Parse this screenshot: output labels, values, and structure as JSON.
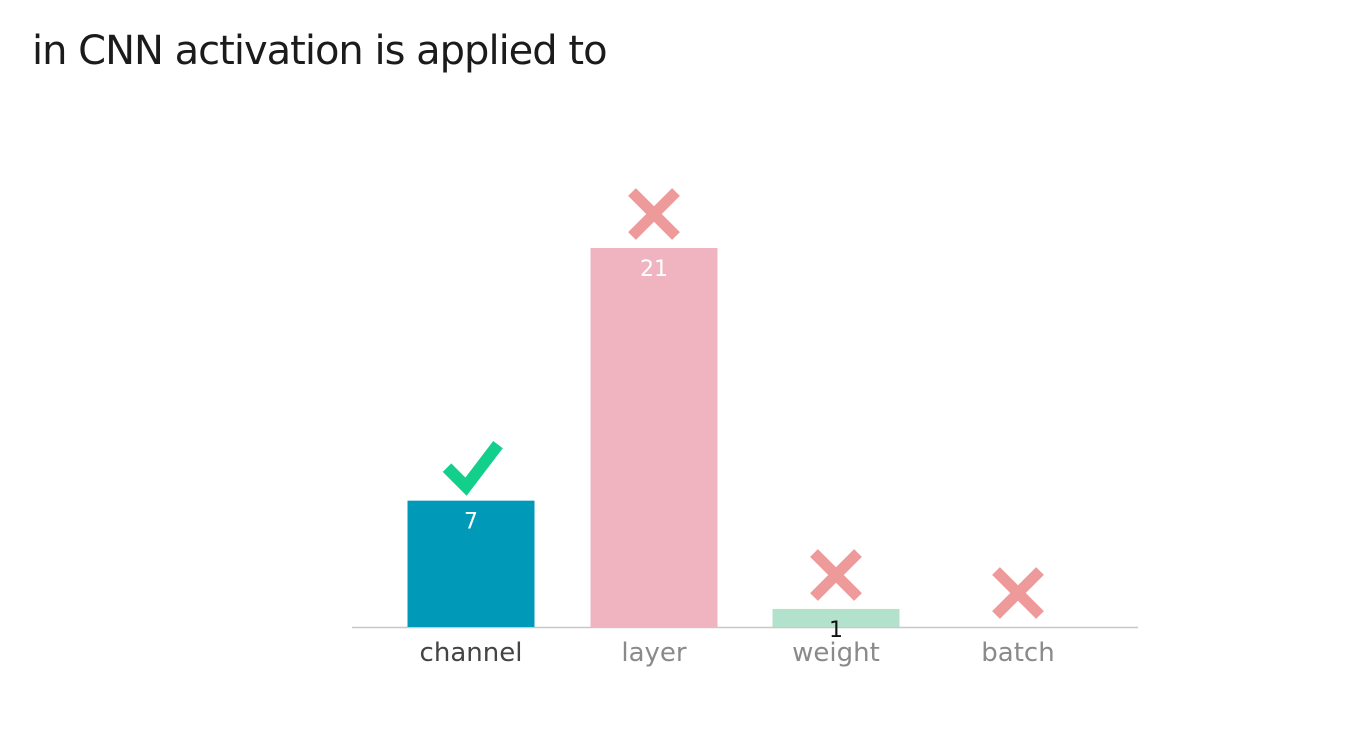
{
  "question": {
    "title": "in CNN activation is applied to"
  },
  "chart_data": {
    "type": "bar",
    "title": "in CNN activation is applied to",
    "xlabel": "",
    "ylabel": "",
    "ylim": [
      0,
      21
    ],
    "grid": false,
    "legend": "none",
    "categories": [
      "channel",
      "layer",
      "weight",
      "batch"
    ],
    "values": [
      7,
      21,
      1,
      0
    ],
    "value_labels": [
      "7",
      "21",
      "1",
      ""
    ],
    "correct": [
      true,
      false,
      false,
      false
    ],
    "colors": [
      "#009ab8",
      "#efb4c0",
      "#b2e2cc",
      "#cfcfcf"
    ],
    "label_colors": [
      "#444444",
      "#8a8a8a",
      "#8a8a8a",
      "#8a8a8a"
    ],
    "value_label_colors": [
      "#ffffff",
      "#ffffff",
      "#111111",
      "#111111"
    ],
    "check_color": "#12cf8c",
    "cross_color": "#ee9a9a",
    "axis_color": "#c8c8c8",
    "marker_icons": [
      "check-icon",
      "cross-icon",
      "cross-icon",
      "cross-icon"
    ]
  }
}
